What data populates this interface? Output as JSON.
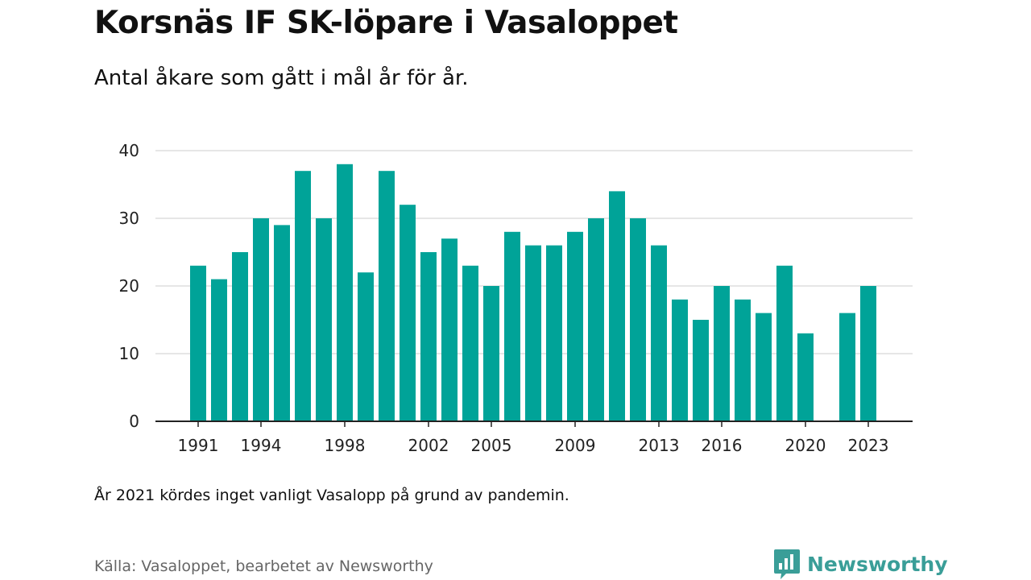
{
  "header": {
    "title": "Korsnäs IF SK-löpare i Vasaloppet",
    "subtitle": "Antal åkare som gått i mål år för år."
  },
  "footer": {
    "note": "År 2021 kördes inget vanligt Vasalopp på grund av pandemin.",
    "source": "Källa: Vasaloppet, bearbetet av Newsworthy",
    "brand": "Newsworthy"
  },
  "colors": {
    "bar": "#00a398",
    "grid": "#dddddd",
    "axis": "#222222",
    "brand": "#3a9e98"
  },
  "icons": {
    "brand_logo": "newsworthy-logo-icon"
  },
  "chart_data": {
    "type": "bar",
    "title": "Korsnäs IF SK-löpare i Vasaloppet",
    "subtitle": "Antal åkare som gått i mål år för år.",
    "xlabel": "",
    "ylabel": "",
    "ylim": [
      0,
      40
    ],
    "yticks": [
      0,
      10,
      20,
      30,
      40
    ],
    "xtick_labels": [
      "1991",
      "1994",
      "1998",
      "2002",
      "2005",
      "2009",
      "2013",
      "2016",
      "2020",
      "2023"
    ],
    "grid": true,
    "categories": [
      1991,
      1992,
      1993,
      1994,
      1995,
      1996,
      1997,
      1998,
      1999,
      2000,
      2001,
      2002,
      2003,
      2004,
      2005,
      2006,
      2007,
      2008,
      2009,
      2010,
      2011,
      2012,
      2013,
      2014,
      2015,
      2016,
      2017,
      2018,
      2019,
      2020,
      2021,
      2022,
      2023
    ],
    "values": [
      23,
      21,
      25,
      30,
      29,
      37,
      30,
      38,
      22,
      37,
      32,
      25,
      27,
      23,
      20,
      28,
      26,
      26,
      28,
      30,
      34,
      30,
      26,
      18,
      15,
      20,
      18,
      16,
      23,
      13,
      null,
      16,
      20
    ]
  }
}
